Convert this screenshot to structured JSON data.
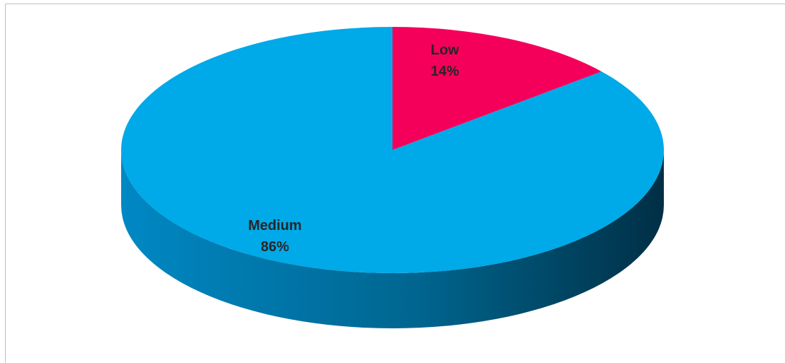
{
  "chart_data": {
    "type": "pie",
    "style": "3d",
    "title": "",
    "legend": "none",
    "slices": [
      {
        "label": "Low",
        "percent_label": "14%",
        "value": 14,
        "color": "#f4005b"
      },
      {
        "label": "Medium",
        "percent_label": "86%",
        "value": 86,
        "color": "#00a9e8"
      }
    ],
    "side_colors": {
      "light": "#0088c4",
      "dark": "#002f45"
    }
  }
}
